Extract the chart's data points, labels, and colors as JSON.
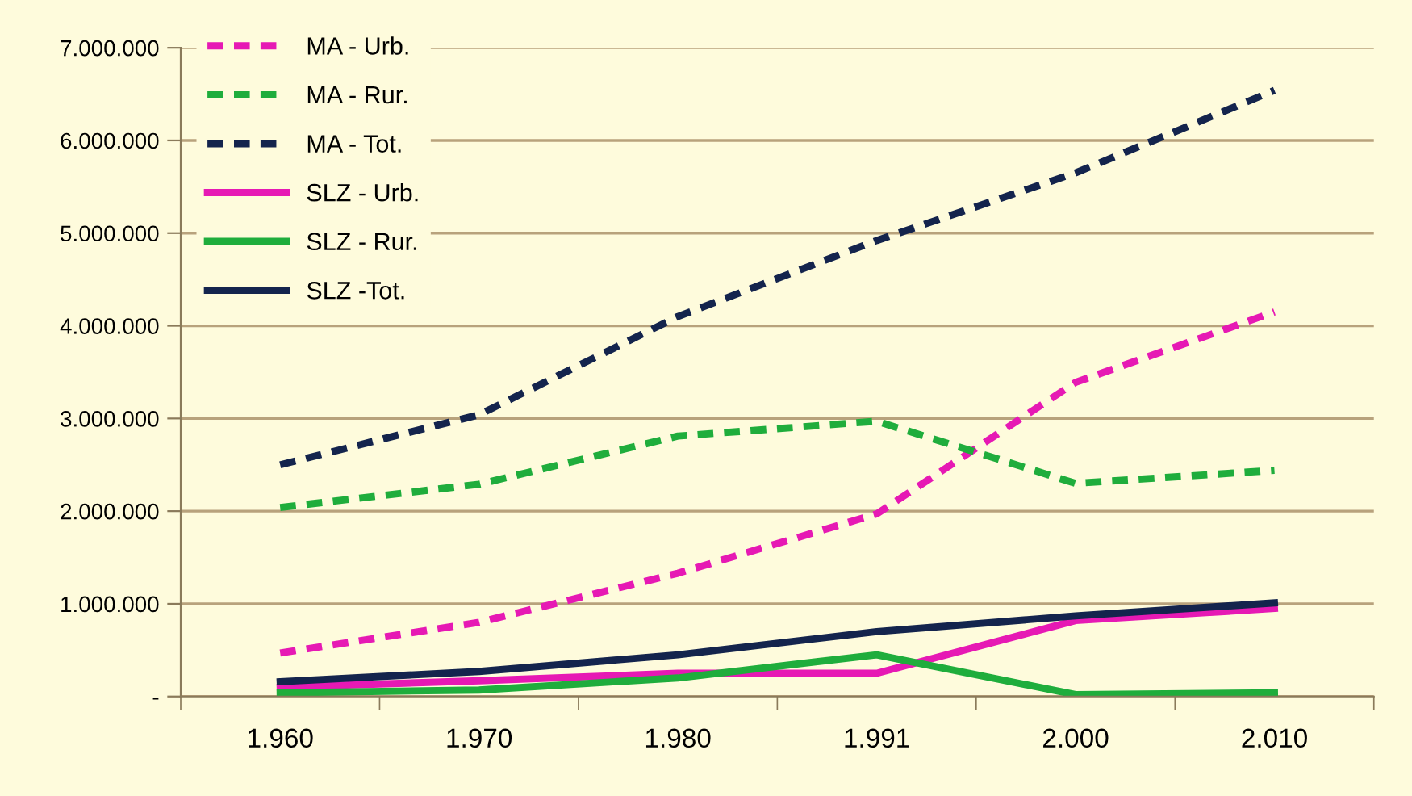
{
  "chart_data": {
    "type": "line",
    "categories": [
      "1.960",
      "1.970",
      "1.980",
      "1.991",
      "2.000",
      "2.010"
    ],
    "series": [
      {
        "name": "MA - Urb.",
        "color": "#e619b4",
        "line_style": "dashed",
        "values": [
          470000,
          800000,
          1330000,
          1970000,
          3390000,
          4150000
        ]
      },
      {
        "name": "MA - Rur.",
        "color": "#1fad3c",
        "line_style": "dashed",
        "values": [
          2040000,
          2290000,
          2810000,
          2970000,
          2300000,
          2440000
        ]
      },
      {
        "name": "MA - Tot.",
        "color": "#14244d",
        "line_style": "dashed",
        "values": [
          2500000,
          3040000,
          4100000,
          4920000,
          5650000,
          6540000
        ]
      },
      {
        "name": "SLZ - Urb.",
        "color": "#e619b4",
        "line_style": "solid",
        "values": [
          100000,
          170000,
          250000,
          250000,
          820000,
          950000
        ]
      },
      {
        "name": "SLZ - Rur.",
        "color": "#1fad3c",
        "line_style": "solid",
        "values": [
          40000,
          70000,
          200000,
          450000,
          20000,
          40000
        ]
      },
      {
        "name": "SLZ -Tot.",
        "color": "#14244d",
        "line_style": "solid",
        "values": [
          160000,
          270000,
          450000,
          700000,
          870000,
          1010000
        ]
      }
    ],
    "ylim": [
      0,
      7000000
    ],
    "yticks": [
      {
        "value": 0,
        "label": "-"
      },
      {
        "value": 1000000,
        "label": "1.000.000"
      },
      {
        "value": 2000000,
        "label": "2.000.000"
      },
      {
        "value": 3000000,
        "label": "3.000.000"
      },
      {
        "value": 4000000,
        "label": "4.000.000"
      },
      {
        "value": 5000000,
        "label": "5.000.000"
      },
      {
        "value": 6000000,
        "label": "6.000.000"
      },
      {
        "value": 7000000,
        "label": "7.000.000"
      }
    ],
    "grid": "y",
    "legend": "upper left",
    "marker": "none"
  }
}
